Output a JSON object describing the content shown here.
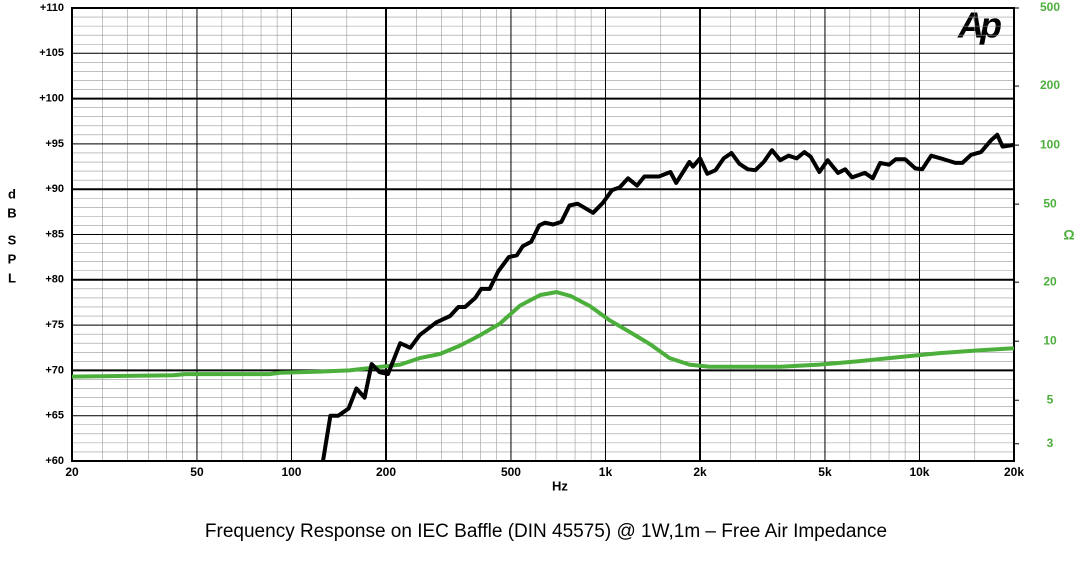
{
  "chart_data": {
    "type": "line",
    "title": "Frequency Response on IEC Baffle (DIN 45575)  @ 1W,1m – Free  Air Impedance",
    "logo": "Ap",
    "xlabel": "Hz",
    "ylabel": "dB SPL",
    "y2label": "Ω",
    "xscale": "log",
    "y2scale": "log",
    "grid": true,
    "xlim": [
      20,
      20000
    ],
    "xticks": [
      20,
      50,
      100,
      200,
      500,
      {
        "value": 1000,
        "label": "1k"
      },
      {
        "value": 2000,
        "label": "2k"
      },
      {
        "value": 5000,
        "label": "5k"
      },
      {
        "value": 10000,
        "label": "10k"
      },
      {
        "value": 20000,
        "label": "20k"
      }
    ],
    "ylim": [
      60,
      110
    ],
    "yticks": [
      {
        "value": 60,
        "label": "+60"
      },
      {
        "value": 65,
        "label": "+65"
      },
      {
        "value": 70,
        "label": "+70"
      },
      {
        "value": 75,
        "label": "+75"
      },
      {
        "value": 80,
        "label": "+80"
      },
      {
        "value": 85,
        "label": "+85"
      },
      {
        "value": 90,
        "label": "+90"
      },
      {
        "value": 95,
        "label": "+95"
      },
      {
        "value": 100,
        "label": "+100"
      },
      {
        "value": 105,
        "label": "+105"
      },
      {
        "value": 110,
        "label": "+110"
      }
    ],
    "y2lim": [
      2.45,
      500
    ],
    "y2ticks": [
      3,
      5,
      10,
      20,
      50,
      100,
      200,
      500
    ],
    "series": [
      {
        "color": "#000000",
        "axis": "y",
        "x": [
          126,
          133,
          141,
          152,
          161,
          171,
          180,
          191,
          203,
          222,
          239,
          256,
          289,
          320,
          340,
          357,
          385,
          402,
          428,
          455,
          492,
          522,
          545,
          580,
          615,
          642,
          681,
          724,
          768,
          815,
          913,
          981,
          1050,
          1110,
          1180,
          1260,
          1330,
          1480,
          1610,
          1680,
          1850,
          1900,
          2000,
          2110,
          2240,
          2380,
          2520,
          2670,
          2840,
          3000,
          3190,
          3390,
          3600,
          3830,
          4060,
          4300,
          4500,
          4800,
          5100,
          5500,
          5800,
          6100,
          6700,
          7100,
          7500,
          8000,
          8400,
          9000,
          9700,
          10200,
          10900,
          11700,
          13000,
          13700,
          14600,
          15700,
          16900,
          17700,
          18400,
          20000
        ],
        "values": [
          60,
          65,
          65,
          65.8,
          68,
          67,
          70.7,
          69.8,
          69.6,
          73,
          72.5,
          73.9,
          75.3,
          76,
          77,
          77,
          78,
          79,
          79,
          80.9,
          82.5,
          82.7,
          83.7,
          84.2,
          86,
          86.3,
          86.1,
          86.4,
          88.2,
          88.4,
          87.4,
          88.5,
          89.9,
          90.2,
          91.2,
          90.4,
          91.4,
          91.4,
          91.9,
          90.7,
          93,
          92.5,
          93.4,
          91.7,
          92.1,
          93.4,
          94,
          92.8,
          92.2,
          92.1,
          93,
          94.3,
          93.2,
          93.7,
          93.4,
          94.1,
          93.6,
          91.9,
          93.2,
          91.8,
          92.2,
          91.3,
          91.8,
          91.2,
          92.9,
          92.7,
          93.3,
          93.3,
          92.3,
          92.2,
          93.7,
          93.4,
          92.9,
          92.9,
          93.8,
          94.1,
          95.4,
          96,
          94.7,
          94.9
        ]
      },
      {
        "color": "#4caf3c",
        "axis": "y2",
        "x": [
          20,
          42,
          46,
          85,
          92,
          123,
          153,
          178,
          222,
          256,
          297,
          344,
          398,
          461,
          535,
          620,
          697,
          775,
          893,
          1030,
          1200,
          1380,
          1600,
          1850,
          2140,
          2660,
          3600,
          4800,
          6400,
          8600,
          11600,
          15600,
          20000
        ],
        "values": [
          6.6,
          6.7,
          6.8,
          6.8,
          6.9,
          7.0,
          7.1,
          7.3,
          7.6,
          8.2,
          8.6,
          9.5,
          10.7,
          12.3,
          15.2,
          17.2,
          17.8,
          17.0,
          15.1,
          12.8,
          11.1,
          9.7,
          8.2,
          7.6,
          7.4,
          7.4,
          7.4,
          7.6,
          7.9,
          8.3,
          8.7,
          9.0,
          9.2
        ]
      }
    ]
  }
}
